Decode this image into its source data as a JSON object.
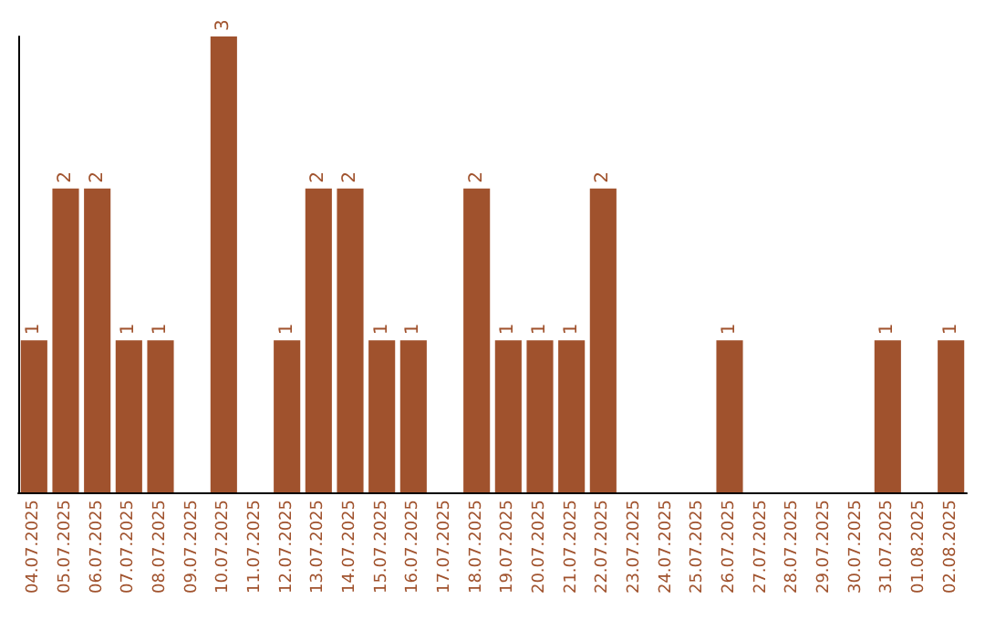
{
  "chart_data": {
    "type": "bar",
    "categories": [
      "04.07.2025",
      "05.07.2025",
      "06.07.2025",
      "07.07.2025",
      "08.07.2025",
      "09.07.2025",
      "10.07.2025",
      "11.07.2025",
      "12.07.2025",
      "13.07.2025",
      "14.07.2025",
      "15.07.2025",
      "16.07.2025",
      "17.07.2025",
      "18.07.2025",
      "19.07.2025",
      "20.07.2025",
      "21.07.2025",
      "22.07.2025",
      "23.07.2025",
      "24.07.2025",
      "25.07.2025",
      "26.07.2025",
      "27.07.2025",
      "28.07.2025",
      "29.07.2025",
      "30.07.2025",
      "31.07.2025",
      "01.08.2025",
      "02.08.2025"
    ],
    "values": [
      1,
      2,
      2,
      1,
      1,
      0,
      3,
      0,
      1,
      2,
      2,
      1,
      1,
      0,
      2,
      1,
      1,
      1,
      2,
      0,
      0,
      0,
      1,
      0,
      0,
      0,
      0,
      1,
      0,
      1
    ],
    "value_labels": [
      "1",
      "2",
      "2",
      "1",
      "1",
      null,
      "3",
      null,
      "1",
      "2",
      "2",
      "1",
      "1",
      null,
      "2",
      "1",
      "1",
      "1",
      "2",
      null,
      null,
      null,
      "1",
      null,
      null,
      null,
      null,
      "1",
      null,
      "1"
    ],
    "color": "#a0522d",
    "ylim": [
      0,
      3
    ],
    "tick_labels": "x",
    "grid": false
  }
}
